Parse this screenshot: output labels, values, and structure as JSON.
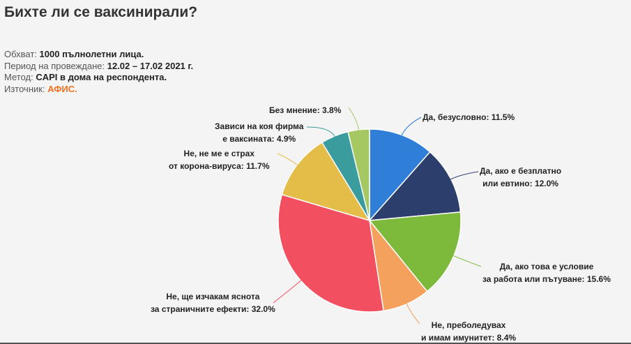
{
  "title": "Бихте ли се ваксинирали?",
  "meta": [
    {
      "label": "Обхват:",
      "value": "1000 пълнолетни лица."
    },
    {
      "label": "Период на провеждане:",
      "value": "12.02 – 17.02 2021 г."
    },
    {
      "label": "Метод:",
      "value": "CAPI в дома на респондента."
    },
    {
      "label": "Източник:",
      "value": "АФИС."
    }
  ],
  "chart_data": {
    "type": "pie",
    "title": "",
    "slices": [
      {
        "label_lines": [
          "Да, безусловно: 11.5%"
        ],
        "category": "Да, безусловно",
        "value": 11.5,
        "color": "#2f7ed8"
      },
      {
        "label_lines": [
          "Да, ако е безплатно",
          "или евтино: 12.0%"
        ],
        "category": "Да, ако е безплатно или евтино",
        "value": 12.0,
        "color": "#2c3e6b"
      },
      {
        "label_lines": [
          "Да, ако това е условие",
          "за работа или пътуване: 15.6%"
        ],
        "category": "Да, ако това е условие за работа или пътуване",
        "value": 15.6,
        "color": "#7dba3c"
      },
      {
        "label_lines": [
          "Не, преболедувах",
          "и имам имунитет: 8.4%"
        ],
        "category": "Не, преболедувах и имам имунитет",
        "value": 8.4,
        "color": "#f4a15d"
      },
      {
        "label_lines": [
          "Не, ще изчакам яснота",
          "за страничните ефекти: 32.0%"
        ],
        "category": "Не, ще изчакам яснота за страничните ефекти",
        "value": 32.0,
        "color": "#f25060"
      },
      {
        "label_lines": [
          "Не, не ме е страх",
          "от корона-вируса: 11.7%"
        ],
        "category": "Не, не ме е страх от корона-вируса",
        "value": 11.7,
        "color": "#e4bd48"
      },
      {
        "label_lines": [
          "Зависи на коя фирма",
          "е ваксината: 4.9%"
        ],
        "category": "Зависи на коя фирма е ваксината",
        "value": 4.9,
        "color": "#3a9c9c"
      },
      {
        "label_lines": [
          "Без мнение: 3.8%"
        ],
        "category": "Без мнение",
        "value": 3.8,
        "color": "#a5c863"
      }
    ]
  }
}
